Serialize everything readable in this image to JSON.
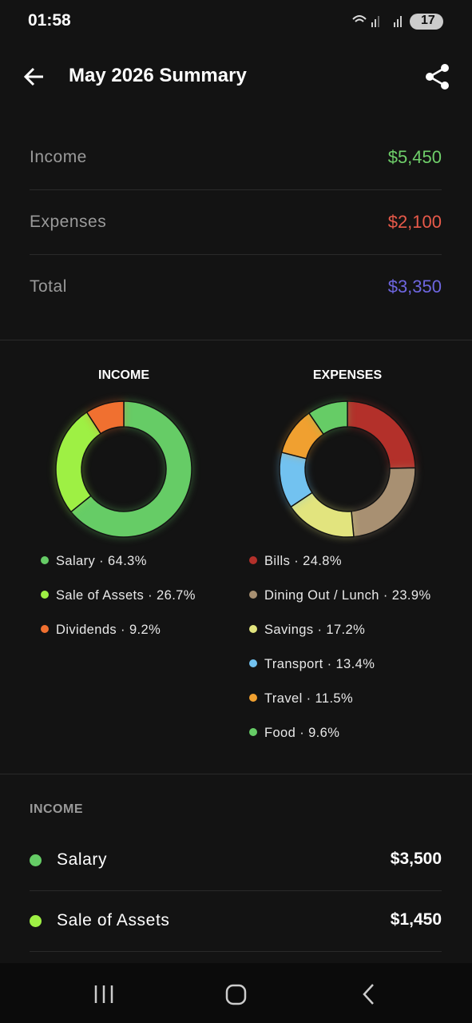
{
  "status_bar": {
    "time": "01:58",
    "battery": "17"
  },
  "header": {
    "title": "May 2026 Summary"
  },
  "summary": {
    "rows": [
      {
        "label": "Income",
        "value": "$5,450",
        "color": "#6fcf6a"
      },
      {
        "label": "Expenses",
        "value": "$2,100",
        "color": "#e85a4a"
      },
      {
        "label": "Total",
        "value": "$3,350",
        "color": "#6e66e0"
      }
    ]
  },
  "charts": [
    {
      "title": "INCOME",
      "separator": "·",
      "items": [
        {
          "name": "Salary",
          "value": 64.3,
          "label": "64.3%",
          "color": "#66cc66"
        },
        {
          "name": "Sale of Assets",
          "value": 26.7,
          "label": "26.7%",
          "color": "#9ef044"
        },
        {
          "name": "Dividends",
          "value": 9.2,
          "label": "9.2%",
          "color": "#f07030"
        }
      ]
    },
    {
      "title": "EXPENSES",
      "separator": "·",
      "items": [
        {
          "name": "Bills",
          "value": 24.8,
          "label": "24.8%",
          "color": "#b3302a"
        },
        {
          "name": "Dining Out / Lunch",
          "value": 23.9,
          "label": "23.9%",
          "color": "#a89072"
        },
        {
          "name": "Savings",
          "value": 17.2,
          "label": "17.2%",
          "color": "#e2e47e"
        },
        {
          "name": "Transport",
          "value": 13.4,
          "label": "13.4%",
          "color": "#72c2f0"
        },
        {
          "name": "Travel",
          "value": 11.5,
          "label": "11.5%",
          "color": "#f0a030"
        },
        {
          "name": "Food",
          "value": 9.6,
          "label": "9.6%",
          "color": "#66cc66"
        }
      ]
    }
  ],
  "list": {
    "title": "INCOME",
    "items": [
      {
        "name": "Salary",
        "amount": "$3,500",
        "color": "#66cc66"
      },
      {
        "name": "Sale of Assets",
        "amount": "$1,450",
        "color": "#9ef044"
      }
    ]
  }
}
